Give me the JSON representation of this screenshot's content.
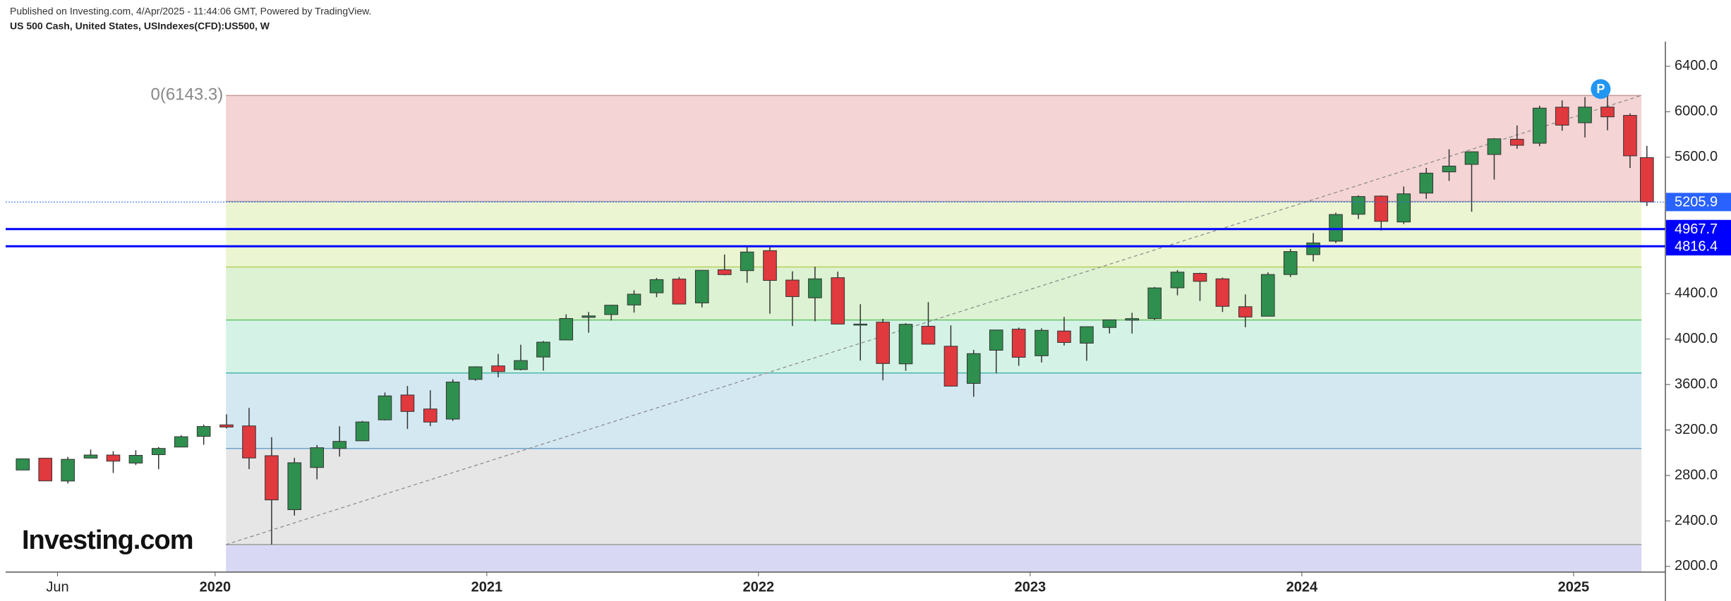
{
  "header": {
    "published": "Published on Investing.com, 4/Apr/2025 - 11:44:06 GMT, Powered by TradingView.",
    "symbol": "US 500 Cash, United States, USIndexes(CFD):US500, W",
    "logo": "Investing.com"
  },
  "chart_data": {
    "type": "candlestick",
    "x": [
      2019.292,
      2019.375,
      2019.458,
      2019.542,
      2019.625,
      2019.708,
      2019.792,
      2019.875,
      2019.958,
      2020.042,
      2020.125,
      2020.208,
      2020.292,
      2020.375,
      2020.458,
      2020.542,
      2020.625,
      2020.708,
      2020.792,
      2020.875,
      2020.958,
      2021.042,
      2021.125,
      2021.208,
      2021.292,
      2021.375,
      2021.458,
      2021.542,
      2021.625,
      2021.708,
      2021.792,
      2021.875,
      2021.958,
      2022.042,
      2022.125,
      2022.208,
      2022.292,
      2022.375,
      2022.458,
      2022.542,
      2022.625,
      2022.708,
      2022.792,
      2022.875,
      2022.958,
      2023.042,
      2023.125,
      2023.208,
      2023.292,
      2023.375,
      2023.458,
      2023.542,
      2023.625,
      2023.708,
      2023.792,
      2023.875,
      2023.958,
      2024.042,
      2024.125,
      2024.208,
      2024.292,
      2024.375,
      2024.458,
      2024.542,
      2024.625,
      2024.708,
      2024.792,
      2024.875,
      2024.958,
      2025.042,
      2025.125,
      2025.208,
      2025.27
    ],
    "open": [
      2848,
      2952,
      2751,
      2953,
      2980,
      2909,
      2983,
      3050,
      3144,
      3245,
      3236,
      2974,
      2499,
      2870,
      3038,
      3105,
      3289,
      3508,
      3385,
      3296,
      3645,
      3764,
      3732,
      3842,
      3992,
      4191,
      4216,
      4300,
      4407,
      4528,
      4318,
      4610,
      4602,
      4778,
      4519,
      4363,
      4540,
      4131,
      4149,
      3782,
      4113,
      3937,
      3610,
      3902,
      4087,
      3853,
      4071,
      3964,
      4102,
      4166,
      4181,
      4451,
      4578,
      4530,
      4285,
      4201,
      4568,
      4743,
      4861,
      5098,
      5258,
      5030,
      5284,
      5471,
      5537,
      5624,
      5758,
      5723,
      6040,
      5903,
      6041,
      5968,
      5597
    ],
    "high": [
      2949,
      2954,
      2964,
      3028,
      3014,
      3022,
      3050,
      3154,
      3248,
      3338,
      3394,
      3137,
      2955,
      3068,
      3233,
      3280,
      3530,
      3588,
      3550,
      3646,
      3760,
      3870,
      3950,
      3983,
      4218,
      4238,
      4302,
      4429,
      4538,
      4546,
      4608,
      4744,
      4808,
      4818,
      4596,
      4637,
      4593,
      4307,
      4178,
      4140,
      4325,
      4120,
      3905,
      4080,
      4101,
      4095,
      4195,
      4110,
      4170,
      4231,
      4458,
      4607,
      4584,
      4541,
      4393,
      4587,
      4793,
      4932,
      5112,
      5265,
      5264,
      5342,
      5506,
      5670,
      5651,
      5768,
      5879,
      6053,
      6100,
      6129,
      6143,
      5986,
      5700
    ],
    "low": [
      2848,
      2751,
      2729,
      2952,
      2822,
      2892,
      2855,
      3050,
      3070,
      3214,
      2856,
      2192,
      2447,
      2766,
      2966,
      3101,
      3284,
      3209,
      3234,
      3280,
      3633,
      3663,
      3725,
      3723,
      3992,
      4056,
      4164,
      4233,
      4368,
      4306,
      4279,
      4561,
      4495,
      4223,
      4115,
      4157,
      4132,
      3811,
      3637,
      3721,
      3955,
      3584,
      3492,
      3699,
      3765,
      3794,
      3943,
      3809,
      4049,
      4048,
      4167,
      4385,
      4335,
      4238,
      4104,
      4198,
      4546,
      4683,
      4845,
      5056,
      4954,
      5012,
      5234,
      5391,
      5120,
      5403,
      5674,
      5697,
      5833,
      5774,
      5837,
      5505,
      5170
    ],
    "close": [
      2946,
      2752,
      2942,
      2980,
      2926,
      2977,
      3038,
      3141,
      3231,
      3226,
      2954,
      2585,
      2912,
      3044,
      3100,
      3271,
      3500,
      3363,
      3270,
      3622,
      3756,
      3714,
      3811,
      3973,
      4181,
      4204,
      4298,
      4395,
      4523,
      4308,
      4605,
      4567,
      4766,
      4516,
      4374,
      4530,
      4132,
      4132,
      3785,
      4130,
      3955,
      3586,
      3872,
      4080,
      3840,
      4077,
      3970,
      4109,
      4169,
      4180,
      4450,
      4589,
      4508,
      4288,
      4194,
      4568,
      4770,
      4846,
      5096,
      5254,
      5036,
      5278,
      5460,
      5522,
      5648,
      5762,
      5705,
      6032,
      5882,
      6041,
      5955,
      5612,
      5206
    ],
    "up_color": "#2f8f4e",
    "down_color": "#e0393e",
    "xlim": [
      2019.229,
      2025.338
    ],
    "ylim": [
      1950,
      6617
    ],
    "xticks": [
      {
        "value": 2019.42,
        "label": "Jun"
      },
      2020,
      2021,
      2022,
      2023,
      2024,
      2025
    ],
    "yticks": [
      {
        "value": 2000,
        "label": "2000.0"
      },
      {
        "value": 2400,
        "label": "2400.0"
      },
      {
        "value": 2800,
        "label": "2800.0"
      },
      {
        "value": 3200,
        "label": "3200.0"
      },
      {
        "value": 3600,
        "label": "3600.0"
      },
      {
        "value": 4000,
        "label": "4000.0"
      },
      {
        "value": 4400,
        "label": "4400.0"
      },
      {
        "value": 4800,
        "label": "4800.0"
      },
      {
        "value": 5200,
        "label": "5200.0"
      },
      {
        "value": 5600,
        "label": "5600.0"
      },
      {
        "value": 6000,
        "label": "6000.0"
      },
      {
        "value": 6400,
        "label": "6400.0"
      }
    ],
    "fib": {
      "label": "0(6143.3)",
      "levels": [
        6143.3,
        5210.8,
        4633.9,
        4167.6,
        3701.3,
        3037.6,
        2191.9
      ],
      "xrange": [
        2020.04,
        2025.25
      ],
      "band_colors": [
        "#f4d4d4",
        "#ecf5d2",
        "#dcf2d2",
        "#d4f3e6",
        "#d4e8f2",
        "#e6e6e6",
        "#d8d8f4"
      ],
      "line_colors": [
        "#c49a9a",
        "#9a9a9a",
        "#b5cf5a",
        "#66c266",
        "#4cb8a8",
        "#6aa6d0",
        "#9a9a9a"
      ],
      "trend_color": "#888888"
    },
    "price_lines": [
      {
        "value": 5205.9,
        "color": "#2962ff",
        "style": "dotted"
      },
      {
        "value": 4967.7,
        "color": "#0000ff",
        "style": "solid"
      },
      {
        "value": 4816.4,
        "color": "#0000ff",
        "style": "solid"
      }
    ],
    "marker": {
      "label": "P",
      "x": 2025.1,
      "y": 6200,
      "color": "#2196f3"
    }
  }
}
